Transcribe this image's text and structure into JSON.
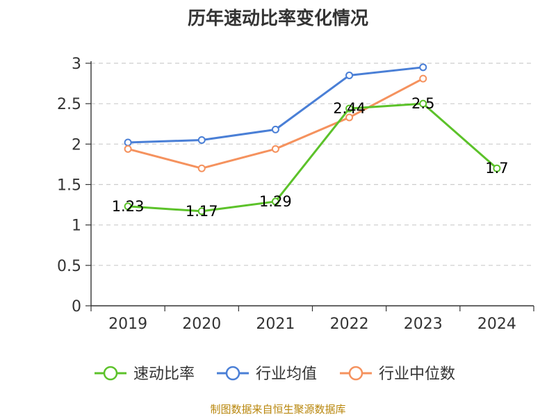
{
  "chart_data": {
    "type": "line",
    "title": "历年速动比率变化情况",
    "categories": [
      "2019",
      "2020",
      "2021",
      "2022",
      "2023",
      "2024"
    ],
    "ylim": [
      0,
      3
    ],
    "yticks": [
      "0",
      "0.5",
      "1",
      "1.5",
      "2",
      "2.5",
      "3"
    ],
    "grid": "horizontal-dashed",
    "legend_position": "bottom",
    "series": [
      {
        "name": "速动比率",
        "color": "#5cc22a",
        "values": [
          1.23,
          1.17,
          1.29,
          2.44,
          2.5,
          1.7
        ],
        "labels": [
          "1.23",
          "1.17",
          "1.29",
          "2.44",
          "2.5",
          "1.7"
        ]
      },
      {
        "name": "行业均值",
        "color": "#4a7fd6",
        "values": [
          2.02,
          2.05,
          2.18,
          2.85,
          2.95,
          null
        ]
      },
      {
        "name": "行业中位数",
        "color": "#f5925e",
        "values": [
          1.94,
          1.7,
          1.94,
          2.33,
          2.81,
          null
        ]
      }
    ]
  },
  "source_text": "制图数据来自恒生聚源数据库"
}
